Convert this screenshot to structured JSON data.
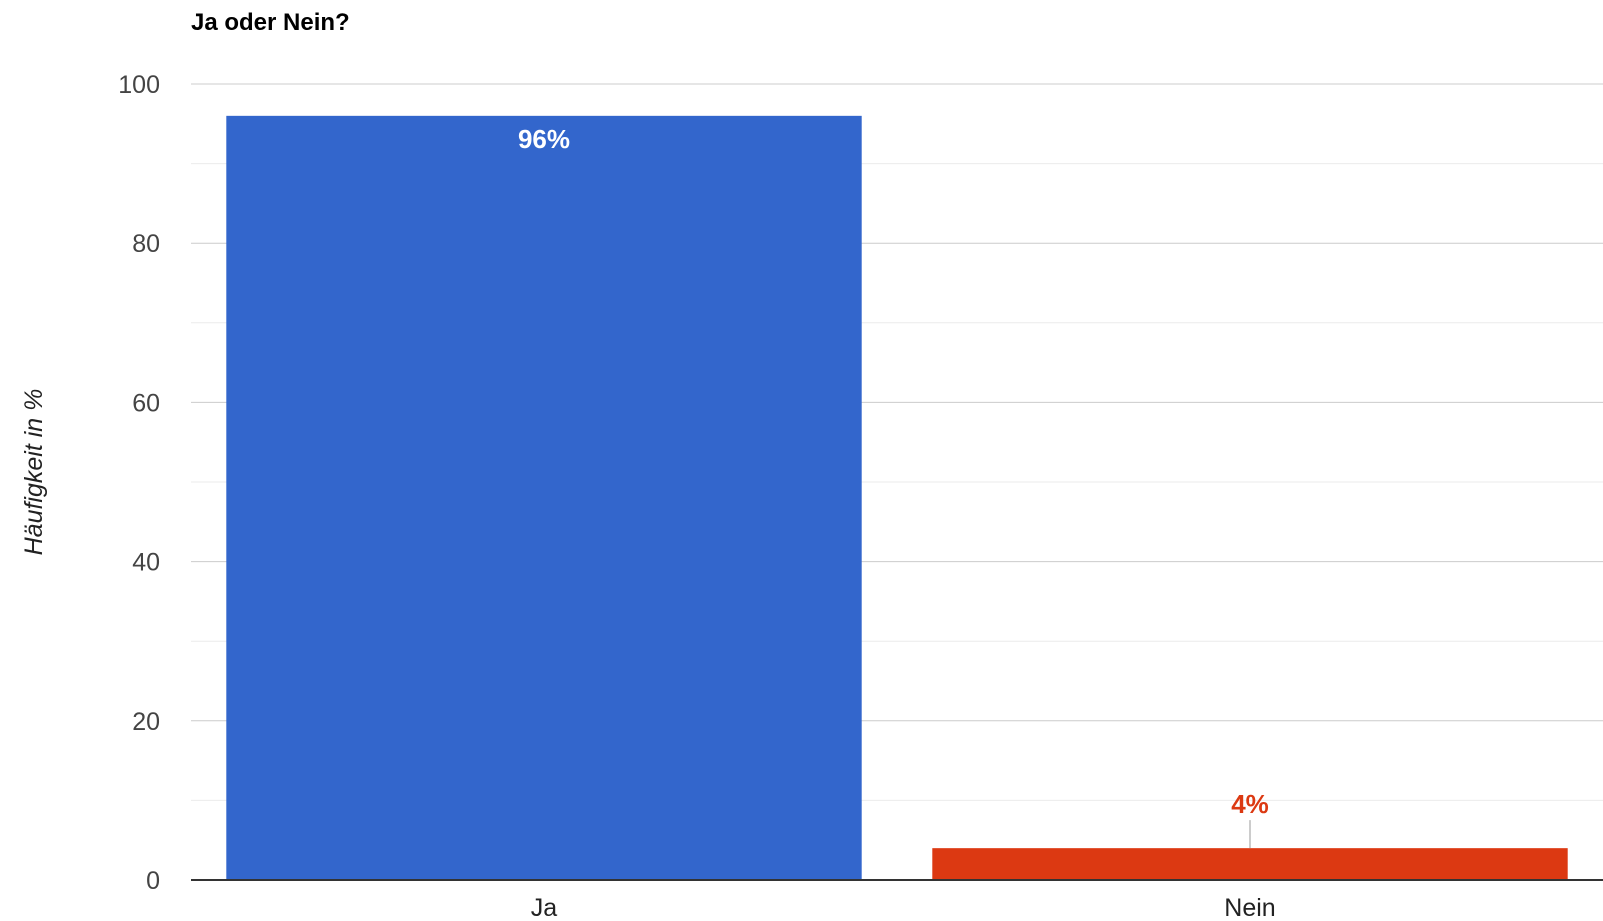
{
  "chart_data": {
    "type": "bar",
    "title": "Ja oder Nein?",
    "xlabel": "",
    "ylabel": "Häufigkeit in %",
    "categories": [
      "Ja",
      "Nein"
    ],
    "values": [
      96,
      4
    ],
    "data_labels": [
      "96%",
      "4%"
    ],
    "colors": [
      "#3366cc",
      "#dc3912"
    ],
    "ylim": [
      0,
      100
    ],
    "yticks": [
      0,
      20,
      40,
      60,
      80,
      100
    ],
    "ytick_labels": [
      "0",
      "20",
      "40",
      "60",
      "80",
      "100"
    ],
    "minor_gridlines": true,
    "legend": "none"
  }
}
